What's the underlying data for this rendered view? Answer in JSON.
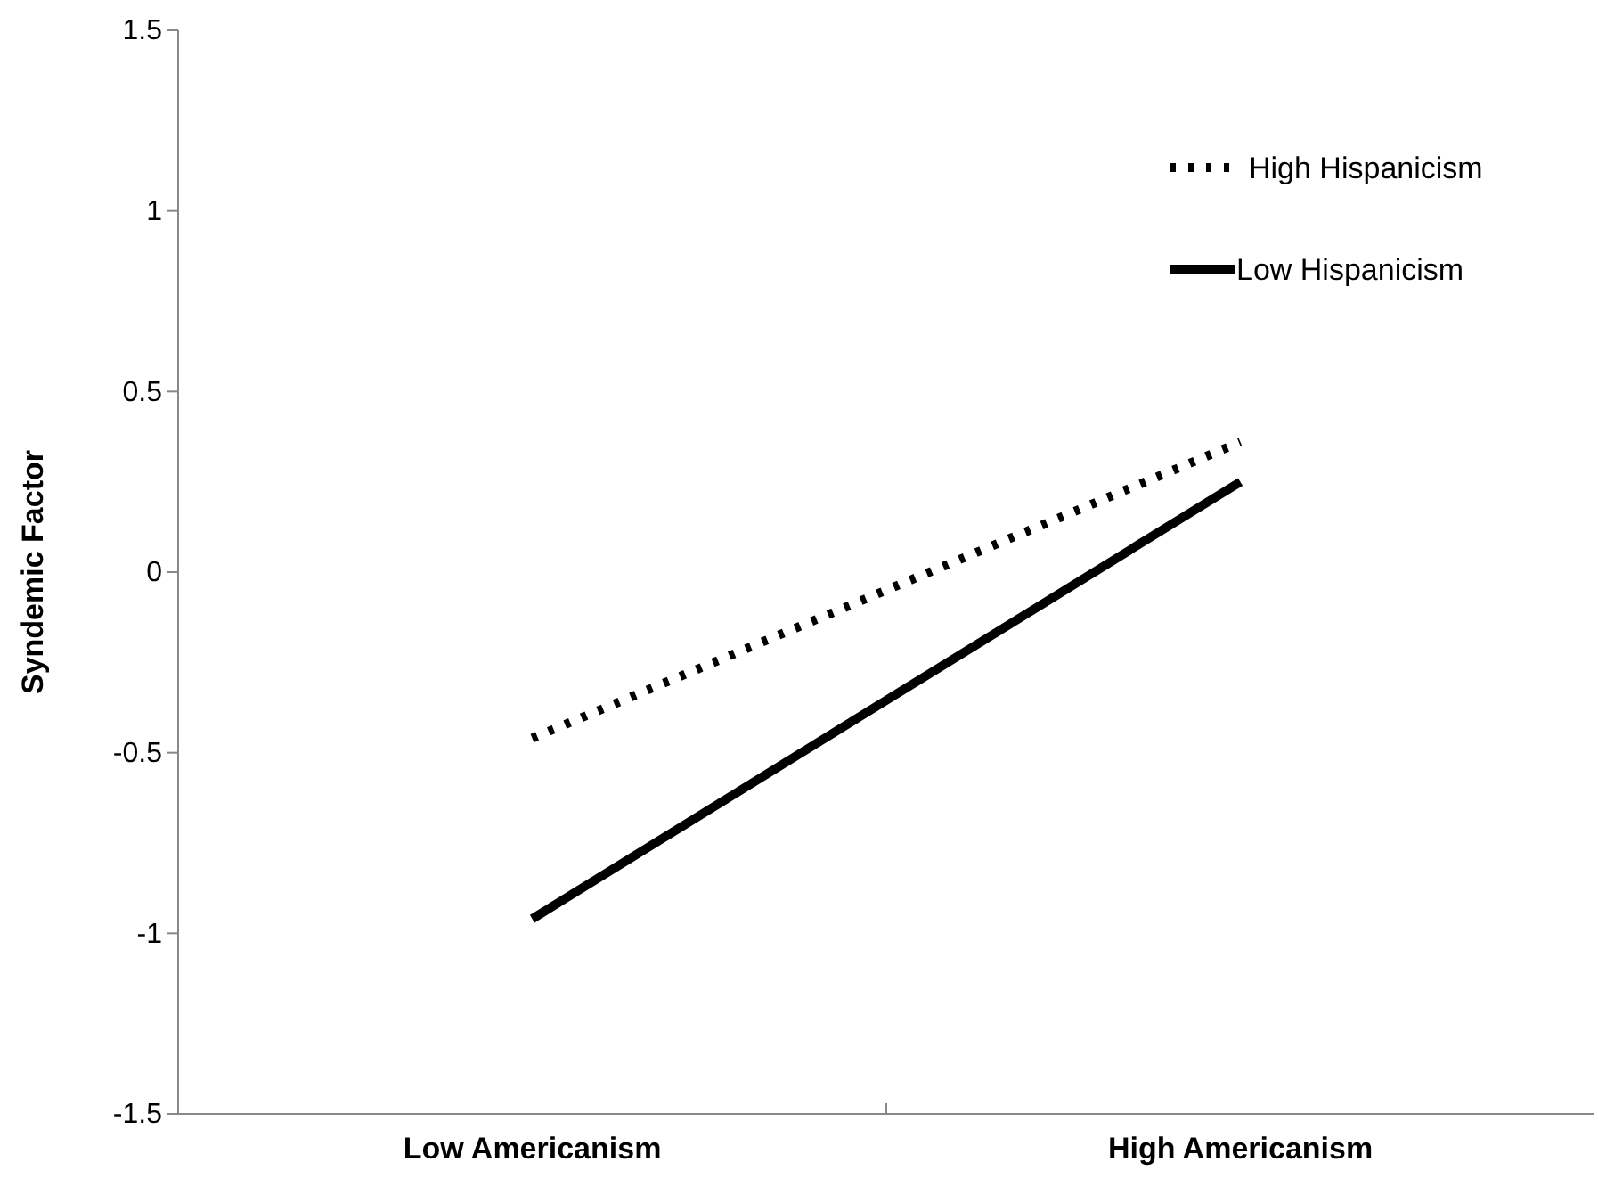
{
  "chart_data": {
    "type": "line",
    "ylabel": "Syndemic Factor",
    "categories": [
      "Low Americanism",
      "High Americanism"
    ],
    "ylim": [
      -1.5,
      1.5
    ],
    "yticks": [
      -1.5,
      -1,
      -0.5,
      0,
      0.5,
      1,
      1.5
    ],
    "grid": false,
    "legend": "top right",
    "marker": "none",
    "series": [
      {
        "name": "High Hispanicism",
        "color": "#000000",
        "line_style": "dotted",
        "values": [
          -0.46,
          0.36
        ]
      },
      {
        "name": "Low Hispanicism",
        "color": "#000000",
        "line_style": "solid",
        "values": [
          -0.96,
          0.25
        ]
      }
    ]
  }
}
